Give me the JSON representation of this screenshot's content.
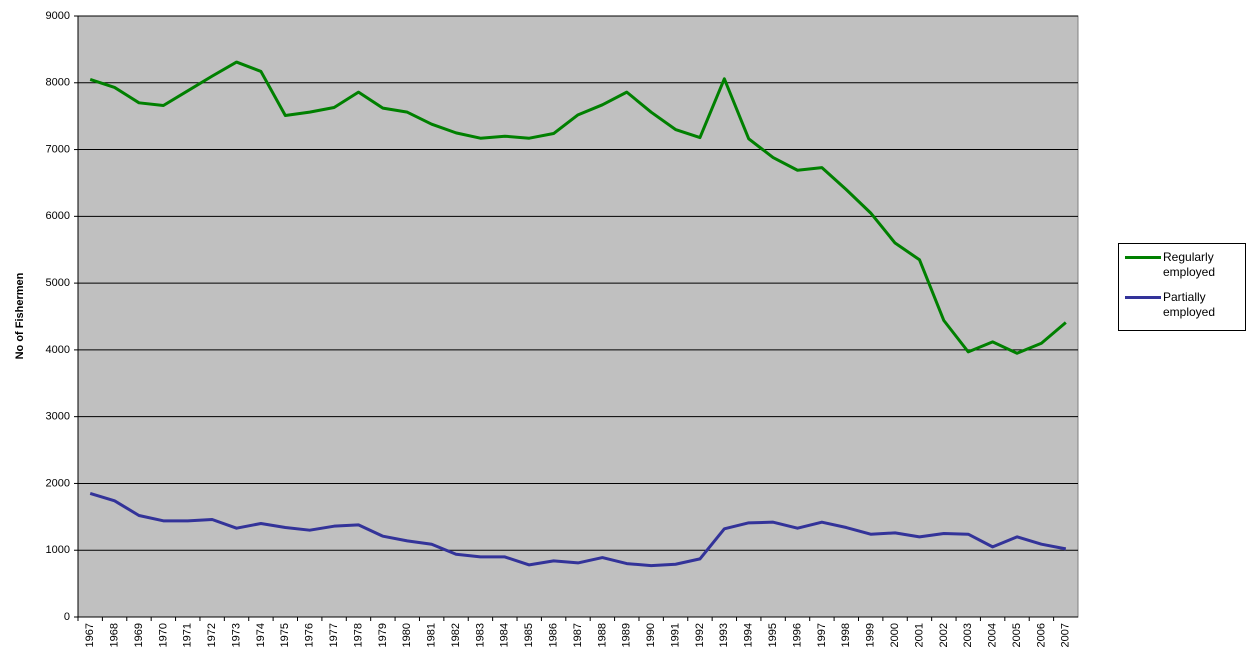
{
  "chart_data": {
    "type": "line",
    "y_label": "No of Fishermen",
    "categories": [
      "1967",
      "1968",
      "1969",
      "1970",
      "1971",
      "1972",
      "1973",
      "1974",
      "1975",
      "1976",
      "1977",
      "1978",
      "1979",
      "1980",
      "1981",
      "1982",
      "1983",
      "1984",
      "1985",
      "1986",
      "1987",
      "1988",
      "1989",
      "1990",
      "1991",
      "1992",
      "1993",
      "1994",
      "1995",
      "1996",
      "1997",
      "1998",
      "1999",
      "2000",
      "2001",
      "2002",
      "2003",
      "2004",
      "2005",
      "2006",
      "2007"
    ],
    "series": [
      {
        "name": "Regularly employed",
        "color": "#008000",
        "values": [
          8050,
          7930,
          7700,
          7660,
          7880,
          8100,
          8310,
          8170,
          7510,
          7560,
          7630,
          7860,
          7620,
          7560,
          7380,
          7250,
          7170,
          7200,
          7170,
          7240,
          7520,
          7670,
          7860,
          7560,
          7300,
          7180,
          8060,
          7160,
          6880,
          6690,
          6730,
          6400,
          6050,
          5600,
          5350,
          4440,
          3970,
          4120,
          3950,
          4100,
          4410
        ]
      },
      {
        "name": "Partially employed",
        "color": "#333399",
        "values": [
          1850,
          1740,
          1520,
          1440,
          1440,
          1460,
          1330,
          1400,
          1340,
          1300,
          1360,
          1380,
          1210,
          1140,
          1090,
          940,
          900,
          900,
          780,
          840,
          810,
          890,
          800,
          770,
          790,
          870,
          1320,
          1410,
          1420,
          1330,
          1420,
          1340,
          1240,
          1260,
          1200,
          1250,
          1240,
          1050,
          1200,
          1090,
          1020
        ]
      }
    ],
    "ylim": [
      0,
      9000
    ],
    "yticks": [
      0,
      1000,
      2000,
      3000,
      4000,
      5000,
      6000,
      7000,
      8000,
      9000
    ],
    "grid": true,
    "legend": "right",
    "background": "#c0c0c0"
  }
}
